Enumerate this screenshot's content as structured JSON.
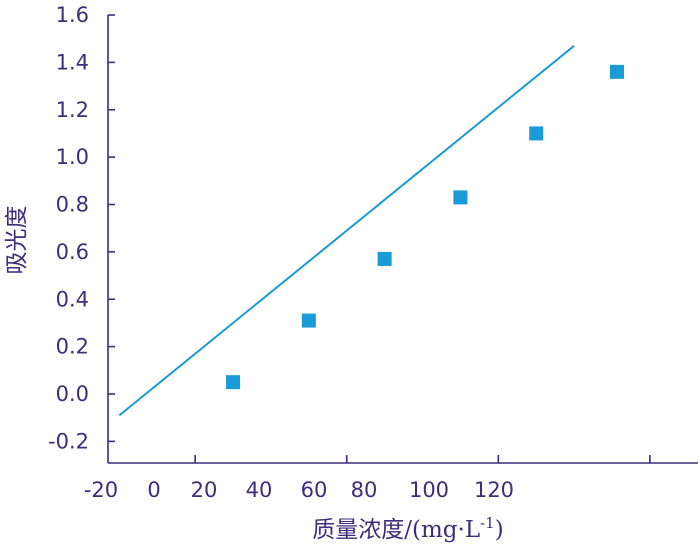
{
  "chart_data": {
    "type": "scatter",
    "title": "",
    "xlabel": "质量浓度/(mg·L",
    "xlabel_sup": "-1",
    "xlabel_tail": ")",
    "ylabel": "吸光度",
    "xlim": [
      -20,
      140
    ],
    "ylim": [
      -0.3,
      1.6
    ],
    "x_tick_labels": [
      "-20",
      "0",
      "20",
      "40",
      "60",
      "80",
      "100",
      "120"
    ],
    "y_ticks": [
      -0.2,
      0.0,
      0.2,
      0.4,
      0.6,
      0.8,
      1.0,
      1.2,
      1.4,
      1.6
    ],
    "y_tick_labels": [
      "-0.2",
      "0.0",
      "0.2",
      "0.4",
      "0.6",
      "0.8",
      "1.0",
      "1.2",
      "1.4",
      "1.6"
    ],
    "series": [
      {
        "type": "scatter",
        "x": [
          20,
          40,
          60,
          80,
          100
        ],
        "y": [
          0.05,
          0.31,
          0.57,
          0.83,
          1.1
        ]
      },
      {
        "type": "line",
        "x": [
          -10,
          110
        ],
        "y": [
          -0.09,
          1.47
        ]
      }
    ],
    "last_point": {
      "x": 120,
      "y": 1.36
    },
    "colors": {
      "axis": "#3d2d7a",
      "text": "#3d2d7a",
      "marker": "#1a9ad6",
      "line": "#1a9ad6"
    },
    "grid": false,
    "legend": "none"
  }
}
